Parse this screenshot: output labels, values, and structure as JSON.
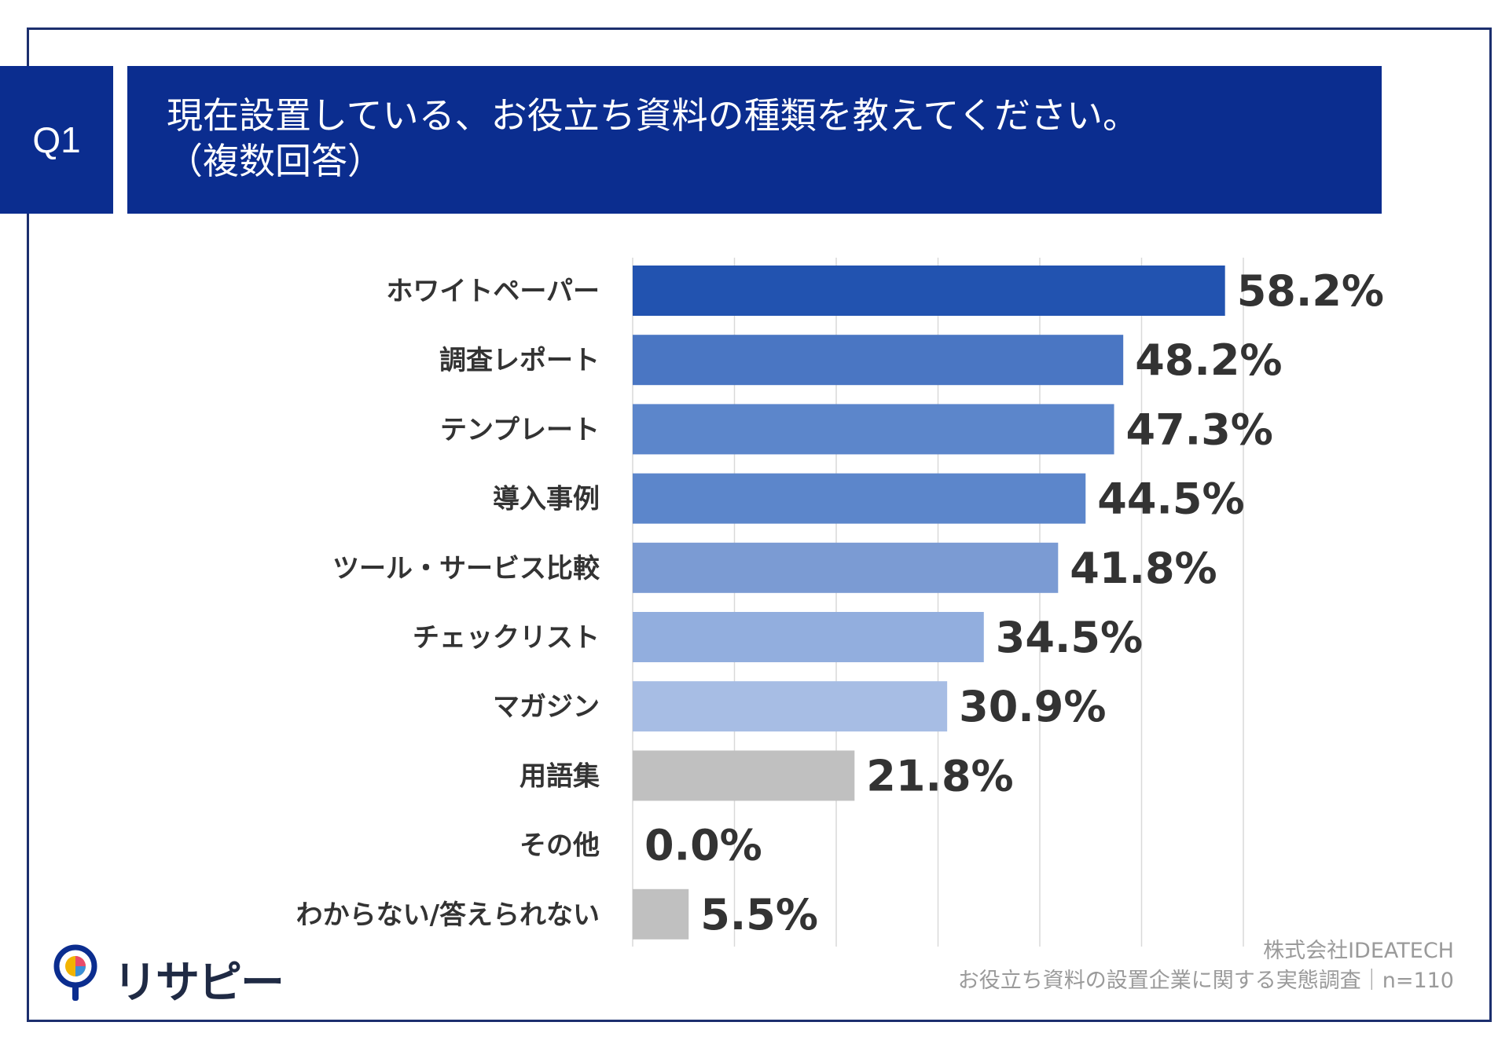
{
  "header": {
    "question_no": "Q1",
    "title_line1": "現在設置している、お役立ち資料の種類を教えてください。",
    "title_line2": "（複数回答）"
  },
  "chart_data": {
    "type": "bar",
    "orientation": "horizontal",
    "title": "現在設置している、お役立ち資料の種類を教えてください。（複数回答）",
    "categories": [
      "ホワイトペーパー",
      "調査レポート",
      "テンプレート",
      "導入事例",
      "ツール・サービス比較",
      "チェックリスト",
      "マガジン",
      "用語集",
      "その他",
      "わからない/答えられない"
    ],
    "values": [
      58.2,
      48.2,
      47.3,
      44.5,
      41.8,
      34.5,
      30.9,
      21.8,
      0.0,
      5.5
    ],
    "value_labels": [
      "58.2%",
      "48.2%",
      "47.3%",
      "44.5%",
      "41.8%",
      "34.5%",
      "30.9%",
      "21.8%",
      "0.0%",
      "5.5%"
    ],
    "bar_colors": [
      "#2253b0",
      "#4a76c3",
      "#5c86cb",
      "#5c86cb",
      "#7b9bd3",
      "#92aede",
      "#a7bde4",
      "#c0c0c0",
      "#c0c0c0",
      "#c0c0c0"
    ],
    "xlim": [
      0,
      60
    ],
    "grid": true,
    "unit": "%"
  },
  "footer": {
    "company": "株式会社IDEATECH",
    "survey": "お役立ち資料の設置企業に関する実態調査｜n=110"
  },
  "logo": {
    "text": "リサピー"
  }
}
